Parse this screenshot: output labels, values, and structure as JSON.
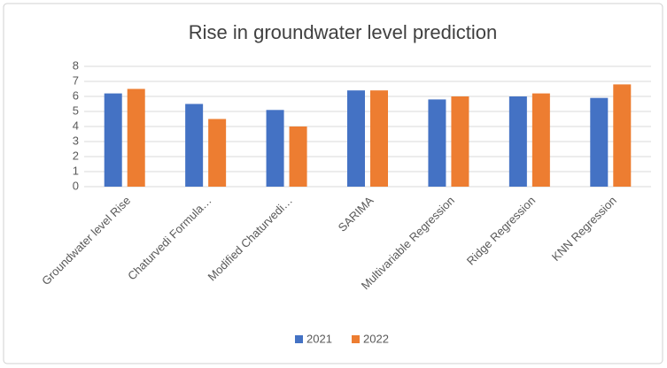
{
  "chart_data": {
    "type": "bar",
    "title": "Rise in groundwater level prediction",
    "categories": [
      "Groundwater level Rise",
      "Chaturvedi Formula…",
      "Modified Chaturvedi…",
      "SARIMA",
      "Multivariable Regression",
      "Ridge Regression",
      "KNN Regression"
    ],
    "series": [
      {
        "name": "2021",
        "color": "#4472c4",
        "values": [
          6.2,
          5.5,
          5.1,
          6.4,
          5.8,
          6.0,
          5.9
        ]
      },
      {
        "name": "2022",
        "color": "#ed7d31",
        "values": [
          6.5,
          4.5,
          4.0,
          6.4,
          6.0,
          6.2,
          6.8
        ]
      }
    ],
    "ylim": [
      0,
      8
    ],
    "yticks": [
      0,
      1,
      2,
      3,
      4,
      5,
      6,
      7,
      8
    ],
    "grid": true,
    "legend": "bottom"
  }
}
